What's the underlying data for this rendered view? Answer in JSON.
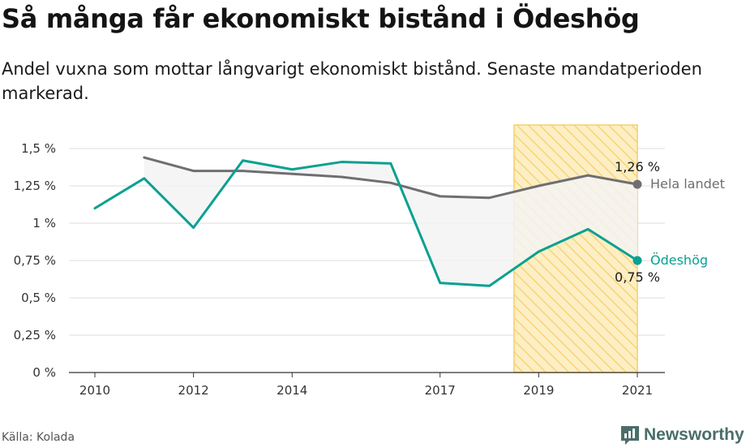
{
  "header": {
    "title": "Så många får ekonomiskt bistånd i Ödeshög",
    "subtitle": "Andel vuxna som mottar långvarigt ekonomiskt bistånd. Senaste mandatperioden markerad."
  },
  "footer": {
    "source": "Källa: Kolada",
    "brand": "Newsworthy"
  },
  "colors": {
    "national": "#6f6e73",
    "local": "#0aa091",
    "highlight_fill": "#fdeec4",
    "highlight_stroke": "#f6cf6a",
    "gap_fill": "#f3f3f3",
    "grid": "#dddddd"
  },
  "chart_data": {
    "type": "line",
    "title": "Så många får ekonomiskt bistånd i Ödeshög",
    "subtitle": "Andel vuxna som mottar långvarigt ekonomiskt bistånd. Senaste mandatperioden markerad.",
    "x_ticks": [
      2010,
      2012,
      2014,
      2017,
      2019,
      2021
    ],
    "xlim": [
      2010,
      2021
    ],
    "y_ticks": [
      0,
      0.25,
      0.5,
      0.75,
      1,
      1.25,
      1.5
    ],
    "y_tick_labels": [
      "0 %",
      "0,25 %",
      "0,5 %",
      "0,75 %",
      "1 %",
      "1,25 %",
      "1,5 %"
    ],
    "ylim": [
      0,
      1.5
    ],
    "grid": true,
    "highlight_period": {
      "from": 2018.5,
      "to": 2021,
      "label": "Senaste mandatperioden"
    },
    "series": [
      {
        "name": "Hela landet",
        "color": "#6f6e73",
        "x": [
          2011,
          2012,
          2013,
          2014,
          2015,
          2016,
          2017,
          2018,
          2019,
          2020,
          2021
        ],
        "y": [
          1.44,
          1.35,
          1.35,
          1.33,
          1.31,
          1.27,
          1.18,
          1.17,
          1.25,
          1.32,
          1.26
        ],
        "end_label": "1,26 %"
      },
      {
        "name": "Ödeshög",
        "color": "#0aa091",
        "x": [
          2010,
          2011,
          2012,
          2013,
          2014,
          2015,
          2016,
          2017,
          2018,
          2019,
          2020,
          2021
        ],
        "y": [
          1.1,
          1.3,
          0.97,
          1.42,
          1.36,
          1.41,
          1.4,
          0.6,
          0.58,
          0.81,
          0.96,
          0.75
        ],
        "end_label": "0,75 %"
      }
    ]
  }
}
